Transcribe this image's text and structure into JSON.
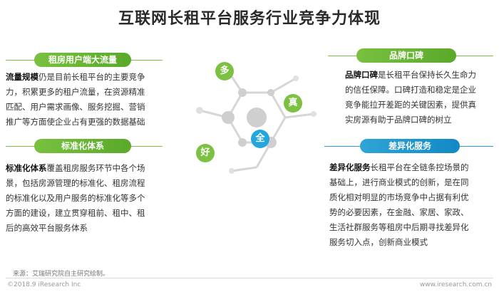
{
  "title": "互联网长租平台服务行业竞争力体现",
  "sections": {
    "left_top": {
      "pill": "租房用户端大流量",
      "bold": "流量规模",
      "lines": [
        "仍是目前长租平台的主要竞争",
        "力，积累更多的租户流量，在资源精准",
        "匹配、用户需求画像、服务挖掘、营销",
        "推广等方面使企业占有更强的数据基础"
      ]
    },
    "left_bottom": {
      "pill": "标准化体系",
      "bold": "标准化体系",
      "lines": [
        "覆盖租房服务环节中各个场",
        "景，包括房源管理的标准化、租房流程",
        "的标准化以及用户服务的标准化等多个",
        "方面的建设，建立贯穿租前、租中、租",
        "后的高效平台服务体系"
      ]
    },
    "right_top": {
      "pill": "品牌口碑",
      "bold": "品牌口碑",
      "lines": [
        "是长租平台保持长久生命力",
        "的信任保障。口碑打造和稳定是企业",
        "竞争能拉开差距的关键因素，提供真",
        "实房源有助于品牌口碑的树立"
      ]
    },
    "right_bottom": {
      "pill": "差异化服务",
      "bold": "差异化服务",
      "lines": [
        "长租平台在全链条控场景的",
        "基础上，进行商业模式的创新，是在同",
        "质化相对明显的市场竞争中占据有利优",
        "势的必要因素，在金融、家居、家政、",
        "生活社群服务等租房中后期寻找差异化",
        "服务切入点，创新商业模式"
      ]
    }
  },
  "bubbles": {
    "duo": "多",
    "zhen": "真",
    "quan": "全",
    "hao": "好"
  },
  "footer": {
    "source": "来源：艾瑞研究院自主研究绘制。",
    "copyright": "©2018.9 iResearch Inc",
    "site": "www.iresearch.com.cn"
  },
  "colors": {
    "green": "#7dc143",
    "blue": "#22a6db",
    "gray": "#c9c9c9"
  }
}
